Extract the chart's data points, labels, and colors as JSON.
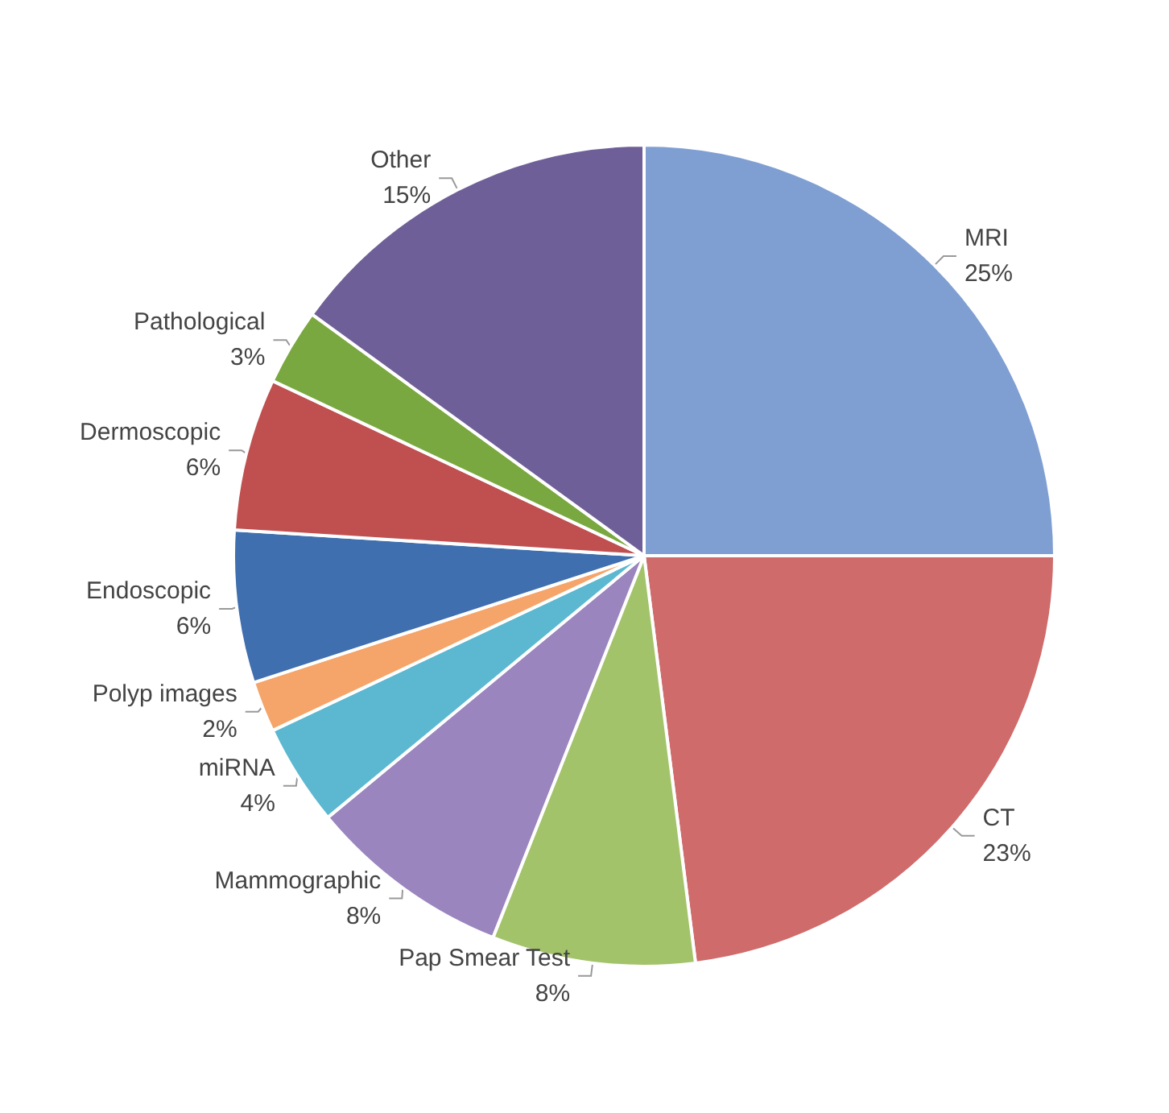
{
  "chart_data": {
    "type": "pie",
    "categories": [
      "MRI",
      "CT",
      "Pap Smear Test",
      "Mammographic",
      "miRNA",
      "Polyp images",
      "Endoscopic",
      "Dermoscopic",
      "Pathological",
      "Other"
    ],
    "values": [
      25,
      23,
      8,
      8,
      4,
      2,
      6,
      6,
      3,
      15
    ],
    "value_labels": [
      "25%",
      "23%",
      "8%",
      "8%",
      "4%",
      "2%",
      "6%",
      "6%",
      "3%",
      "15%"
    ],
    "colors": [
      "#7f9fd3",
      "#cf6b6b",
      "#a3c36b",
      "#9a85bf",
      "#5cb8d0",
      "#f5a46a",
      "#3f6fae",
      "#c05050",
      "#7aa840",
      "#6f5f98"
    ],
    "legend": false
  }
}
